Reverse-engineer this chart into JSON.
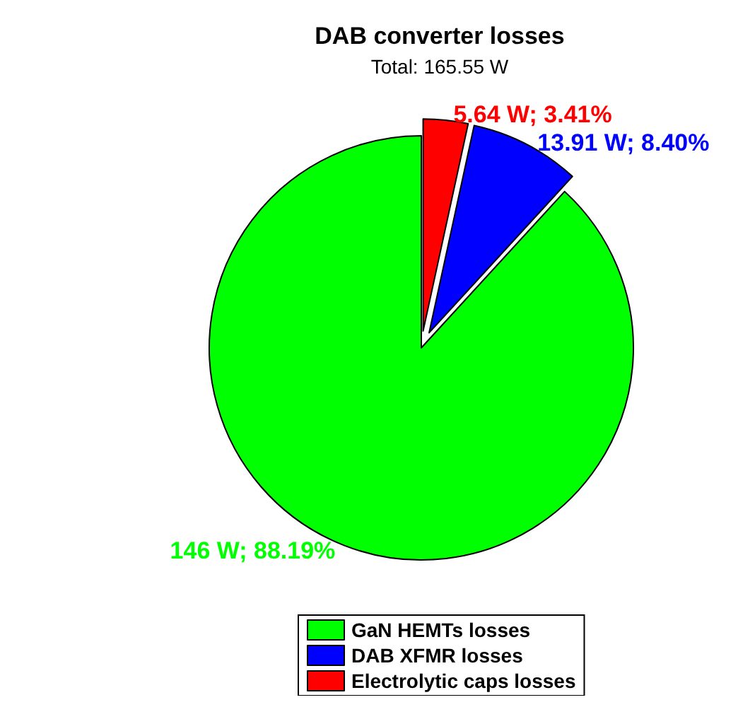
{
  "chart_data": {
    "type": "pie",
    "title": "DAB converter losses",
    "subtitle": "Total: 165.55 W",
    "categories": [
      "GaN HEMTs losses",
      "DAB XFMR losses",
      "Electrolytic caps losses"
    ],
    "values": [
      146,
      13.91,
      5.64
    ],
    "colors": [
      "#00ff00",
      "#0000ff",
      "#ff0000"
    ],
    "value_labels": [
      "146 W; 88.19%",
      "13.91 W; 8.40%",
      "5.64 W; 3.41%"
    ],
    "legend": "bottom"
  }
}
